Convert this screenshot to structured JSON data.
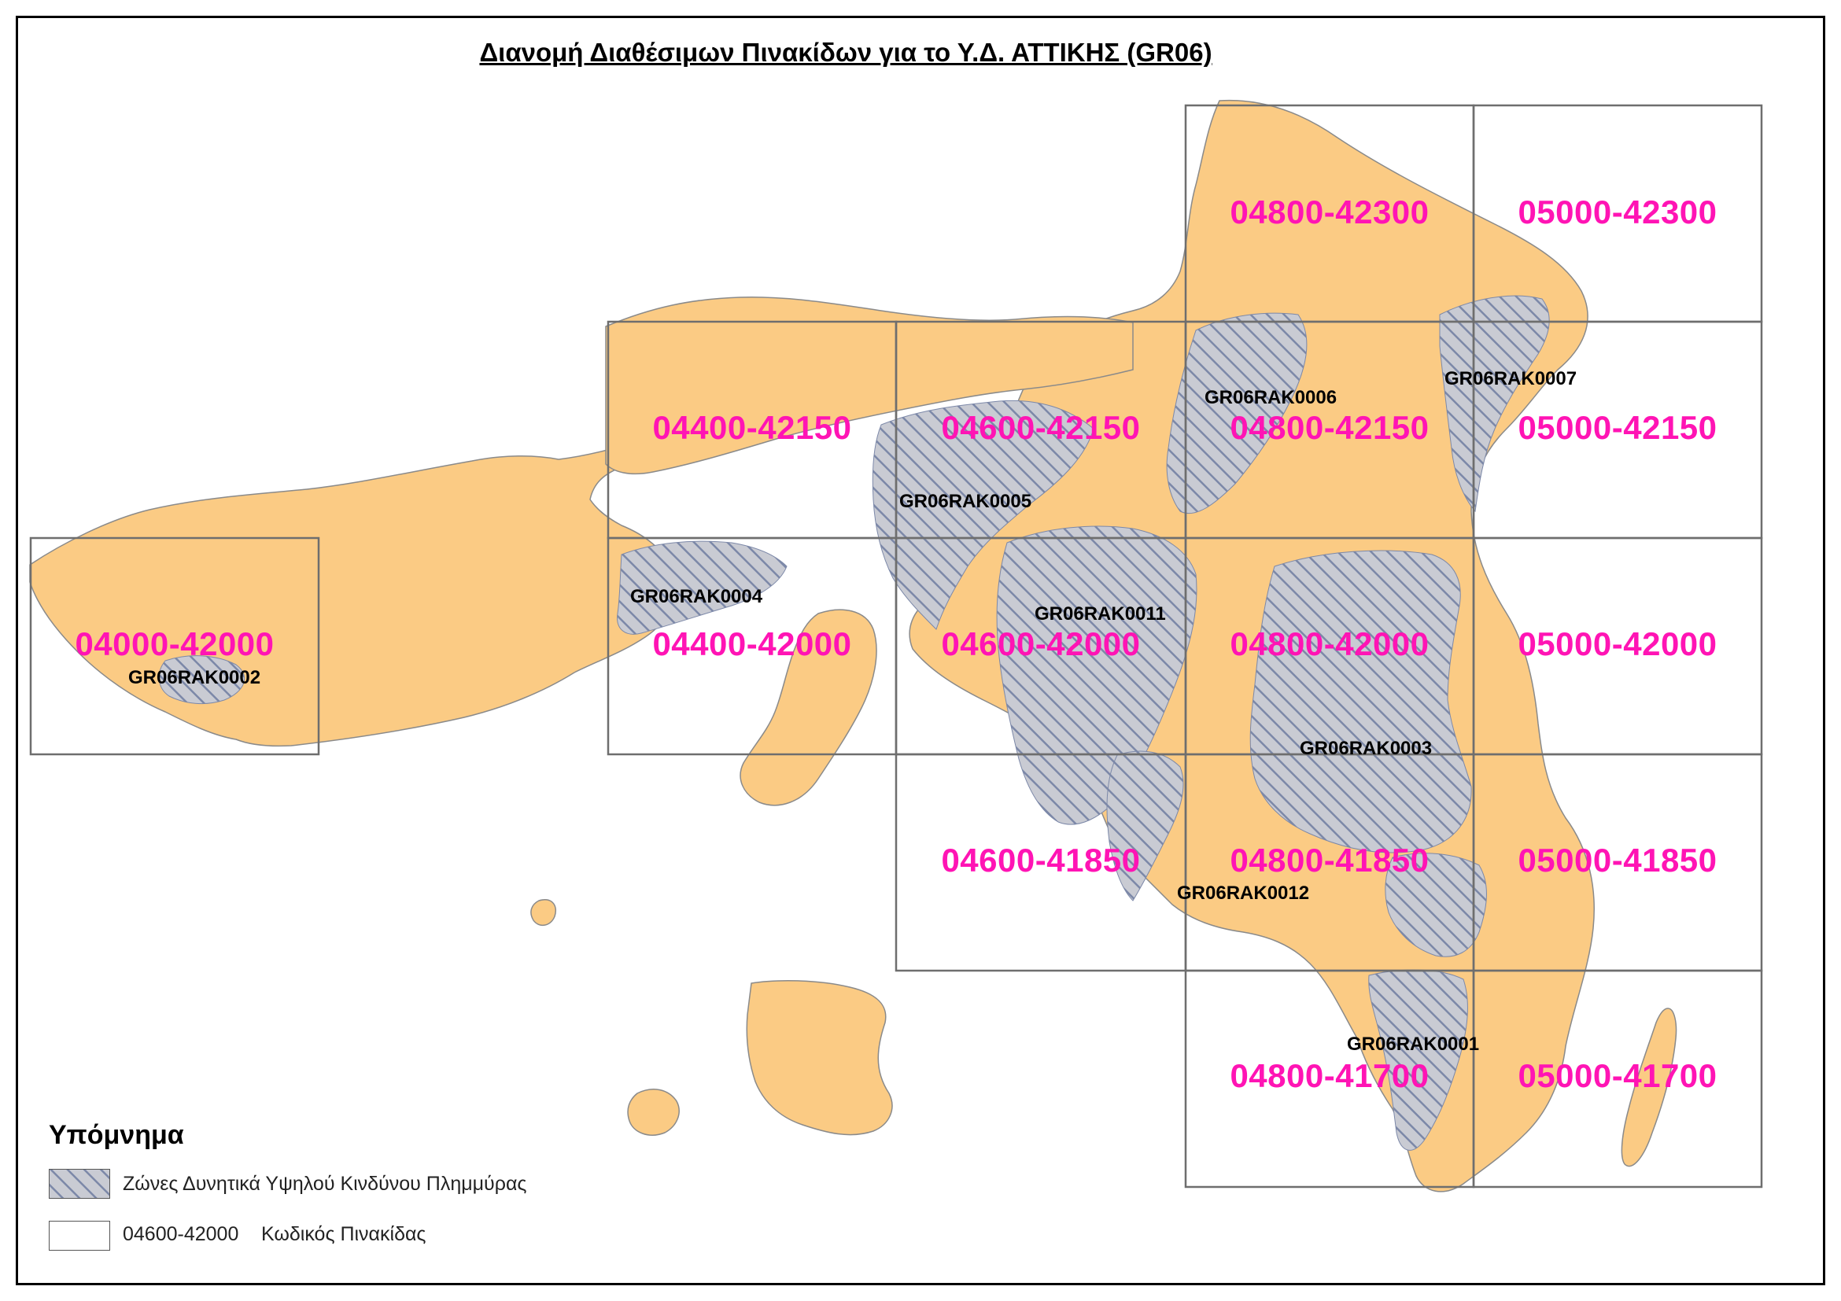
{
  "title": "Διανομή Διαθέσιμων Πινακίδων για το Υ.Δ. ΑΤΤΙΚΗΣ (GR06)",
  "colors": {
    "land": "#FBCB84",
    "coast": "#8A8A8A",
    "grid": "#6E6E6E",
    "tile_label": "#FF14B4",
    "hatch_fill": "#C9CBD3",
    "hatch_line": "#7C88A8"
  },
  "tiles": [
    {
      "code": "04800-42300"
    },
    {
      "code": "05000-42300"
    },
    {
      "code": "04400-42150"
    },
    {
      "code": "04600-42150"
    },
    {
      "code": "04800-42150"
    },
    {
      "code": "05000-42150"
    },
    {
      "code": "04000-42000"
    },
    {
      "code": "04400-42000"
    },
    {
      "code": "04600-42000"
    },
    {
      "code": "04800-42000"
    },
    {
      "code": "05000-42000"
    },
    {
      "code": "04600-41850"
    },
    {
      "code": "04800-41850"
    },
    {
      "code": "05000-41850"
    },
    {
      "code": "04800-41700"
    },
    {
      "code": "05000-41700"
    }
  ],
  "zones": [
    {
      "code": "GR06RAK0001"
    },
    {
      "code": "GR06RAK0002"
    },
    {
      "code": "GR06RAK0003"
    },
    {
      "code": "GR06RAK0004"
    },
    {
      "code": "GR06RAK0005"
    },
    {
      "code": "GR06RAK0006"
    },
    {
      "code": "GR06RAK0007"
    },
    {
      "code": "GR06RAK0011"
    },
    {
      "code": "GR06RAK0012"
    }
  ],
  "legend": {
    "title": "Υπόμνημα",
    "flood_zone_label": "Ζώνες Δυνητικά Υψηλού Κινδύνου Πλημμύρας",
    "tile_code_example": "04600-42000",
    "tile_code_label": "Κωδικός Πινακίδας"
  }
}
